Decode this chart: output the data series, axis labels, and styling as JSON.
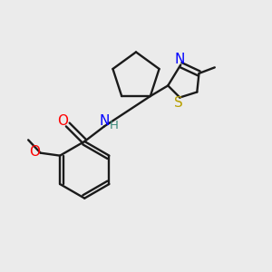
{
  "background_color": "#ebebeb",
  "bond_color": "#1a1a1a",
  "figsize": [
    3.0,
    3.0
  ],
  "dpi": 100,
  "xlim": [
    0,
    10
  ],
  "ylim": [
    0,
    10
  ]
}
